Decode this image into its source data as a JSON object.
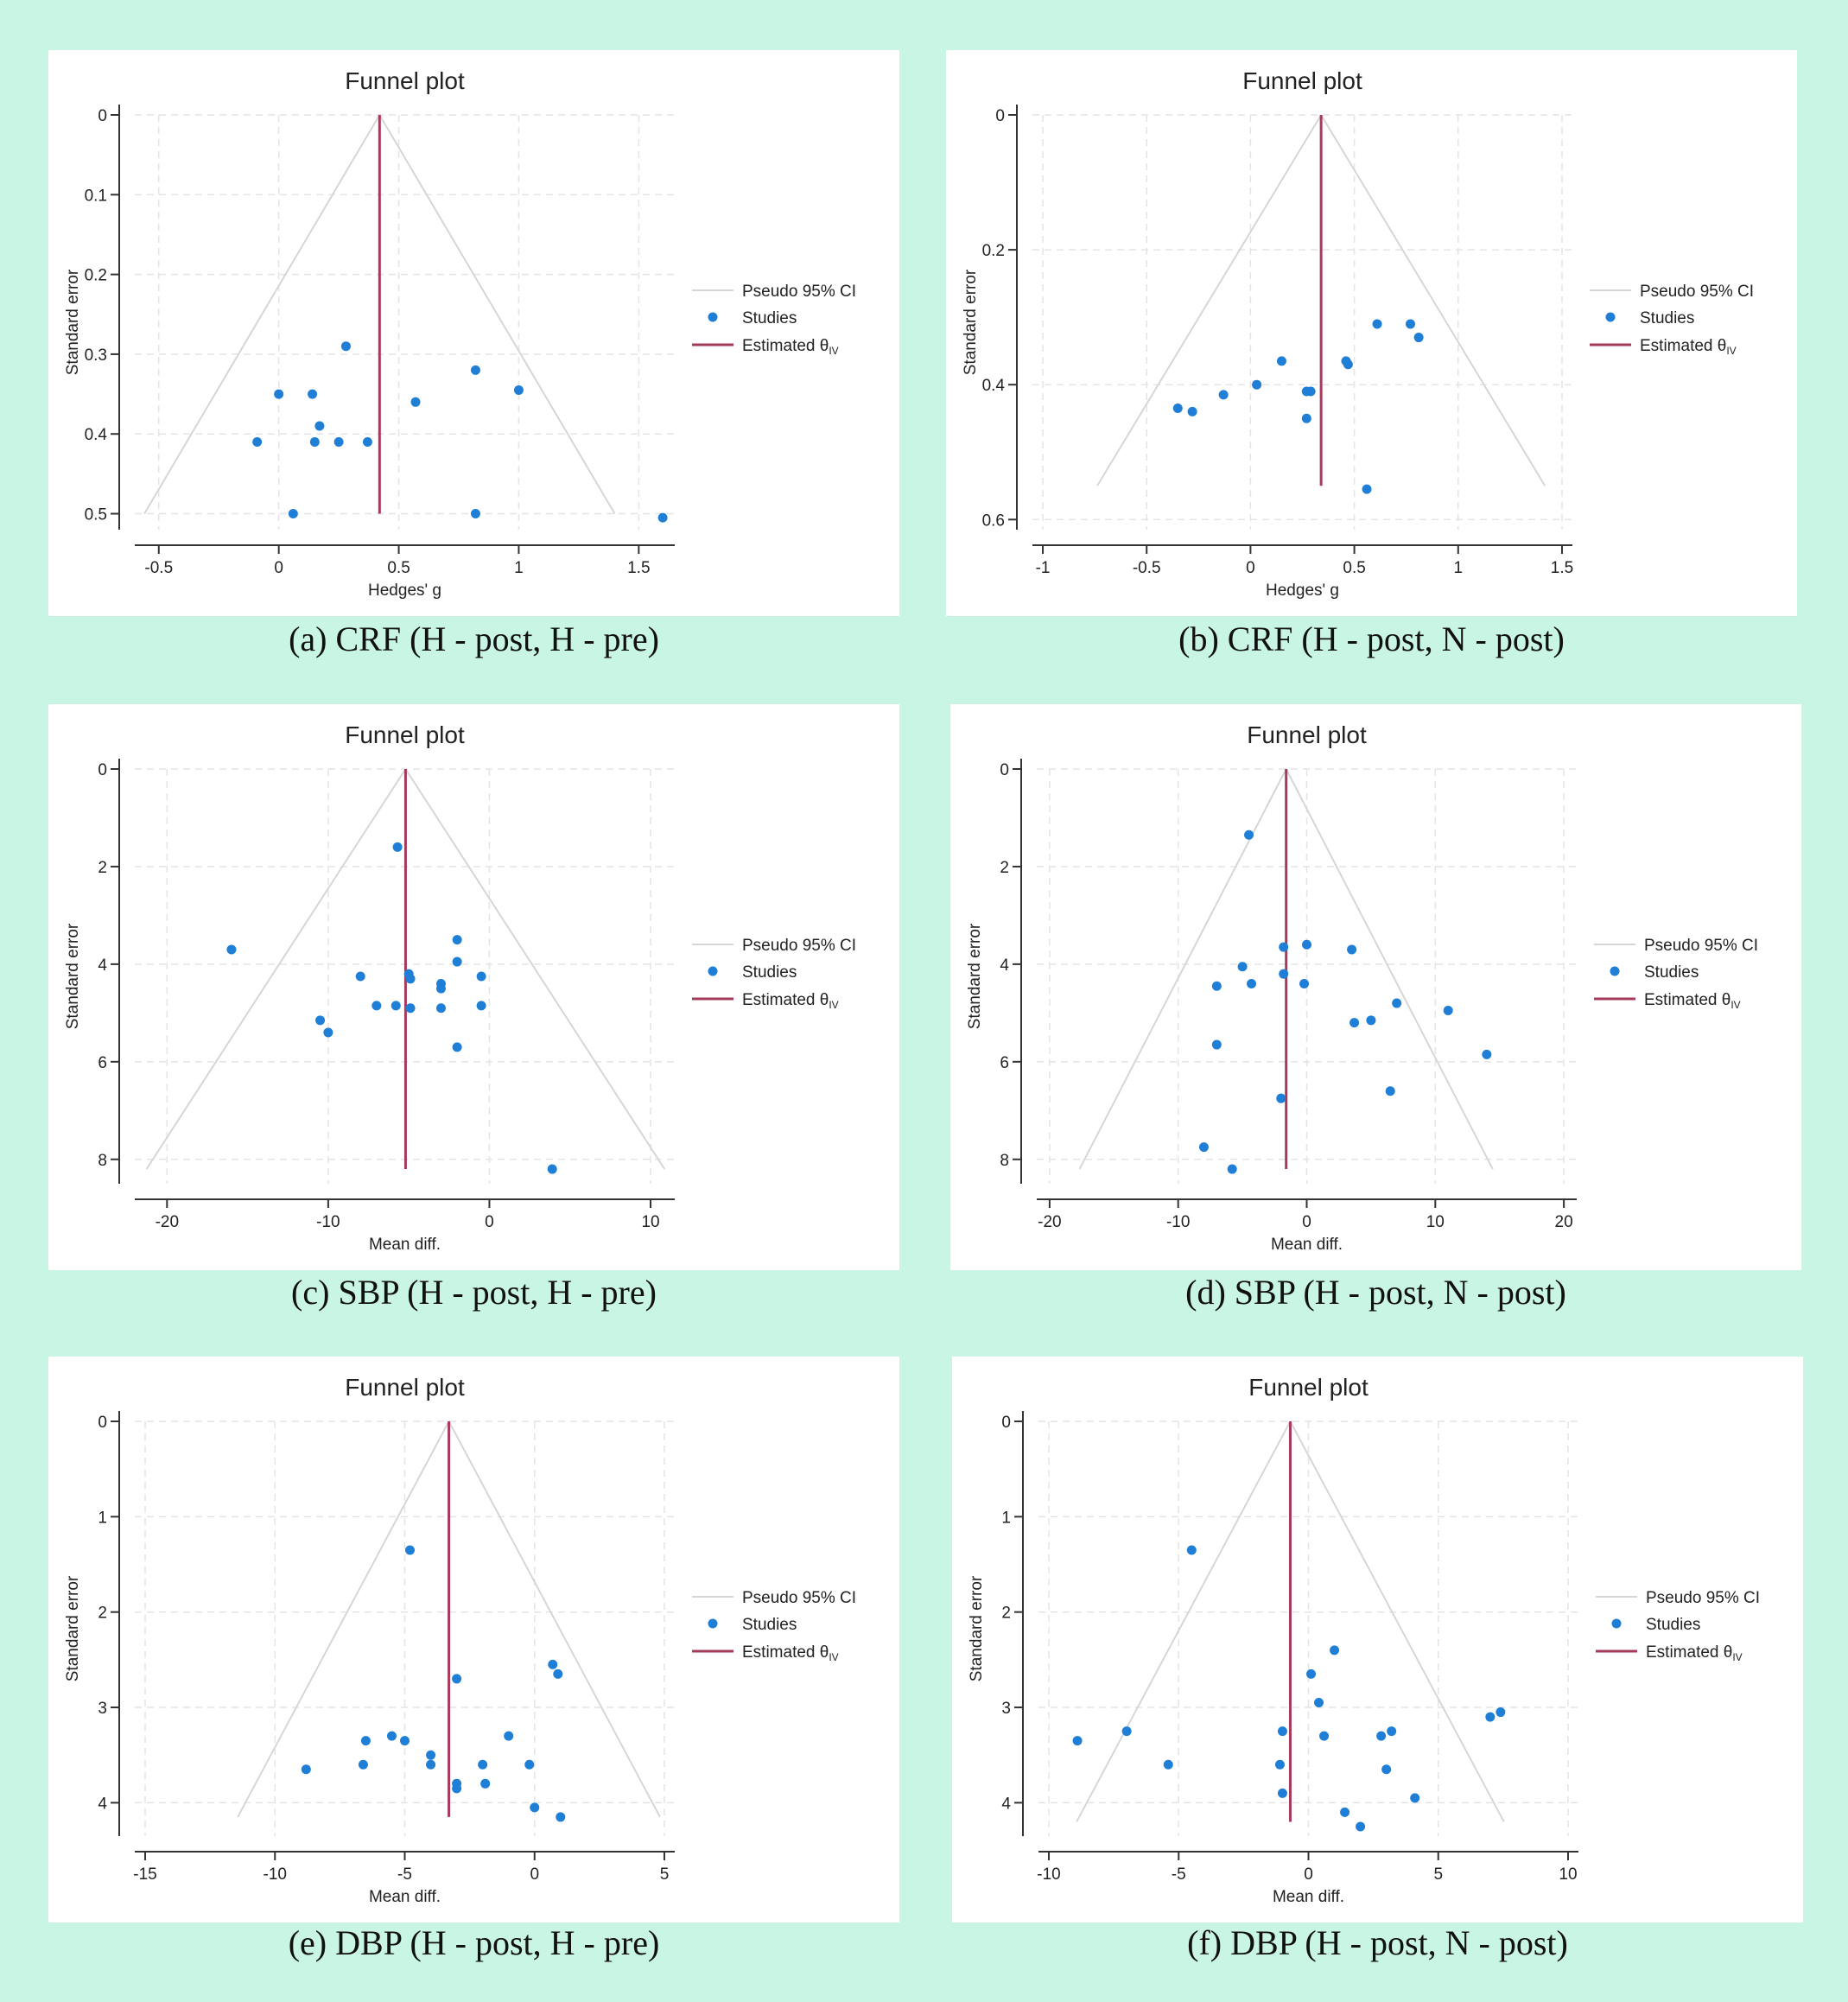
{
  "legend_labels": {
    "ci": "Pseudo 95% CI",
    "studies": "Studies",
    "est_main": "Estimated θ",
    "est_sub": "IV"
  },
  "colors": {
    "background": "#c9f5e4",
    "points": "#1f7fd6",
    "estimate": "#a63a5a",
    "ci": "#d6d6d6",
    "grid": "#e4e4e4"
  },
  "chart_data": [
    {
      "id": "a",
      "type": "scatter",
      "title": "Funnel plot",
      "caption": "(a) CRF (H - post, H - pre)",
      "xlabel": "Hedges' g",
      "ylabel": "Standard error",
      "xlim": [
        -0.6,
        1.65
      ],
      "ylim": [
        0,
        0.52
      ],
      "xticks": [
        -0.5,
        0,
        0.5,
        1,
        1.5
      ],
      "xtick_labels": [
        "-0.5",
        "0",
        "0.5",
        "1",
        "1.5"
      ],
      "yticks": [
        0,
        0.1,
        0.2,
        0.3,
        0.4,
        0.5
      ],
      "ytick_labels": [
        "0",
        "0.1",
        "0.2",
        "0.3",
        "0.4",
        "0.5"
      ],
      "estimate": 0.42,
      "ci_ymax": 0.5,
      "points": [
        [
          0.28,
          0.29
        ],
        [
          0.0,
          0.35
        ],
        [
          0.14,
          0.35
        ],
        [
          0.17,
          0.39
        ],
        [
          0.15,
          0.41
        ],
        [
          -0.09,
          0.41
        ],
        [
          0.25,
          0.41
        ],
        [
          0.37,
          0.41
        ],
        [
          0.57,
          0.36
        ],
        [
          0.82,
          0.32
        ],
        [
          1.0,
          0.345
        ],
        [
          0.82,
          0.5
        ],
        [
          0.06,
          0.5
        ],
        [
          1.6,
          0.505
        ]
      ]
    },
    {
      "id": "b",
      "type": "scatter",
      "title": "Funnel plot",
      "caption": "(b) CRF (H - post, N - post)",
      "xlabel": "Hedges' g",
      "ylabel": "Standard error",
      "xlim": [
        -1.05,
        1.55
      ],
      "ylim": [
        0,
        0.615
      ],
      "xticks": [
        -1,
        -0.5,
        0,
        0.5,
        1,
        1.5
      ],
      "xtick_labels": [
        "-1",
        "-0.5",
        "0",
        "0.5",
        "1",
        "1.5"
      ],
      "yticks": [
        0,
        0.2,
        0.4,
        0.6
      ],
      "ytick_labels": [
        "0",
        "0.2",
        "0.4",
        "0.6"
      ],
      "estimate": 0.34,
      "ci_ymax": 0.55,
      "points": [
        [
          -0.35,
          0.435
        ],
        [
          -0.28,
          0.44
        ],
        [
          -0.13,
          0.415
        ],
        [
          0.03,
          0.4
        ],
        [
          0.15,
          0.365
        ],
        [
          0.27,
          0.41
        ],
        [
          0.29,
          0.41
        ],
        [
          0.27,
          0.45
        ],
        [
          0.46,
          0.365
        ],
        [
          0.47,
          0.37
        ],
        [
          0.61,
          0.31
        ],
        [
          0.77,
          0.31
        ],
        [
          0.81,
          0.33
        ],
        [
          0.56,
          0.555
        ]
      ]
    },
    {
      "id": "c",
      "type": "scatter",
      "title": "Funnel plot",
      "caption": "(c) SBP (H - post, H - pre)",
      "xlabel": "Mean diff.",
      "ylabel": "Standard error",
      "xlim": [
        -22,
        11.5
      ],
      "ylim": [
        0,
        8.5
      ],
      "xticks": [
        -20,
        -10,
        0,
        10
      ],
      "xtick_labels": [
        "-20",
        "-10",
        "0",
        "10"
      ],
      "yticks": [
        0,
        2,
        4,
        6,
        8
      ],
      "ytick_labels": [
        "0",
        "2",
        "4",
        "6",
        "8"
      ],
      "estimate": -5.2,
      "ci_ymax": 8.2,
      "points": [
        [
          -5.7,
          1.6
        ],
        [
          -16.0,
          3.7
        ],
        [
          -2.0,
          3.5
        ],
        [
          -2.0,
          3.95
        ],
        [
          -8.0,
          4.25
        ],
        [
          -5.0,
          4.2
        ],
        [
          -4.9,
          4.3
        ],
        [
          -3.0,
          4.4
        ],
        [
          -3.0,
          4.5
        ],
        [
          -0.5,
          4.25
        ],
        [
          -7.0,
          4.85
        ],
        [
          -5.8,
          4.85
        ],
        [
          -4.9,
          4.9
        ],
        [
          -3.0,
          4.9
        ],
        [
          -0.5,
          4.85
        ],
        [
          -10.5,
          5.15
        ],
        [
          -10.0,
          5.4
        ],
        [
          -2.0,
          5.7
        ],
        [
          3.9,
          8.2
        ]
      ]
    },
    {
      "id": "d",
      "type": "scatter",
      "title": "Funnel plot",
      "caption": "(d) SBP (H - post, N - post)",
      "xlabel": "Mean diff.",
      "ylabel": "Standard error",
      "xlim": [
        -21,
        21
      ],
      "ylim": [
        0,
        8.5
      ],
      "xticks": [
        -20,
        -10,
        0,
        10,
        20
      ],
      "xtick_labels": [
        "-20",
        "-10",
        "0",
        "10",
        "20"
      ],
      "yticks": [
        0,
        2,
        4,
        6,
        8
      ],
      "ytick_labels": [
        "0",
        "2",
        "4",
        "6",
        "8"
      ],
      "estimate": -1.6,
      "ci_ymax": 8.2,
      "points": [
        [
          -4.5,
          1.35
        ],
        [
          -1.8,
          3.65
        ],
        [
          0.0,
          3.6
        ],
        [
          3.5,
          3.7
        ],
        [
          -5.0,
          4.05
        ],
        [
          -1.8,
          4.2
        ],
        [
          -7.0,
          4.45
        ],
        [
          -4.3,
          4.4
        ],
        [
          -0.2,
          4.4
        ],
        [
          7.0,
          4.8
        ],
        [
          11.0,
          4.95
        ],
        [
          3.7,
          5.2
        ],
        [
          5.0,
          5.15
        ],
        [
          -7.0,
          5.65
        ],
        [
          14.0,
          5.85
        ],
        [
          6.5,
          6.6
        ],
        [
          -2.0,
          6.75
        ],
        [
          -8.0,
          7.75
        ],
        [
          -5.8,
          8.2
        ]
      ]
    },
    {
      "id": "e",
      "type": "scatter",
      "title": "Funnel plot",
      "caption": "(e) DBP (H - post, H - pre)",
      "xlabel": "Mean diff.",
      "ylabel": "Standard error",
      "xlim": [
        -15.4,
        5.4
      ],
      "ylim": [
        0,
        4.35
      ],
      "xticks": [
        -15,
        -10,
        -5,
        0,
        5
      ],
      "xtick_labels": [
        "-15",
        "-10",
        "-5",
        "0",
        "5"
      ],
      "yticks": [
        0,
        1,
        2,
        3,
        4
      ],
      "ytick_labels": [
        "0",
        "1",
        "2",
        "3",
        "4"
      ],
      "estimate": -3.3,
      "ci_ymax": 4.15,
      "points": [
        [
          -4.8,
          1.35
        ],
        [
          -3.0,
          2.7
        ],
        [
          0.7,
          2.55
        ],
        [
          0.9,
          2.65
        ],
        [
          -6.5,
          3.35
        ],
        [
          -5.5,
          3.3
        ],
        [
          -5.0,
          3.35
        ],
        [
          -1.0,
          3.3
        ],
        [
          -4.0,
          3.5
        ],
        [
          -4.0,
          3.6
        ],
        [
          -2.0,
          3.6
        ],
        [
          -0.2,
          3.6
        ],
        [
          -8.8,
          3.65
        ],
        [
          -6.6,
          3.6
        ],
        [
          -3.0,
          3.8
        ],
        [
          -3.0,
          3.85
        ],
        [
          -1.9,
          3.8
        ],
        [
          0.0,
          4.05
        ],
        [
          1.0,
          4.15
        ]
      ]
    },
    {
      "id": "f",
      "type": "scatter",
      "title": "Funnel plot",
      "caption": "(f) DBP (H - post, N - post)",
      "xlabel": "Mean diff.",
      "ylabel": "Standard error",
      "xlim": [
        -10.4,
        10.4
      ],
      "ylim": [
        0,
        4.35
      ],
      "xticks": [
        -10,
        -5,
        0,
        5,
        10
      ],
      "xtick_labels": [
        "-10",
        "-5",
        "0",
        "5",
        "10"
      ],
      "yticks": [
        0,
        1,
        2,
        3,
        4
      ],
      "ytick_labels": [
        "0",
        "1",
        "2",
        "3",
        "4"
      ],
      "estimate": -0.7,
      "ci_ymax": 4.2,
      "points": [
        [
          -4.5,
          1.35
        ],
        [
          1.0,
          2.4
        ],
        [
          0.1,
          2.65
        ],
        [
          0.4,
          2.95
        ],
        [
          -1.0,
          3.25
        ],
        [
          0.6,
          3.3
        ],
        [
          -7.0,
          3.25
        ],
        [
          -8.9,
          3.35
        ],
        [
          2.8,
          3.3
        ],
        [
          3.2,
          3.25
        ],
        [
          7.0,
          3.1
        ],
        [
          7.4,
          3.05
        ],
        [
          -5.4,
          3.6
        ],
        [
          -1.1,
          3.6
        ],
        [
          3.0,
          3.65
        ],
        [
          -1.0,
          3.9
        ],
        [
          4.1,
          3.95
        ],
        [
          1.4,
          4.1
        ],
        [
          2.0,
          4.25
        ]
      ]
    }
  ]
}
